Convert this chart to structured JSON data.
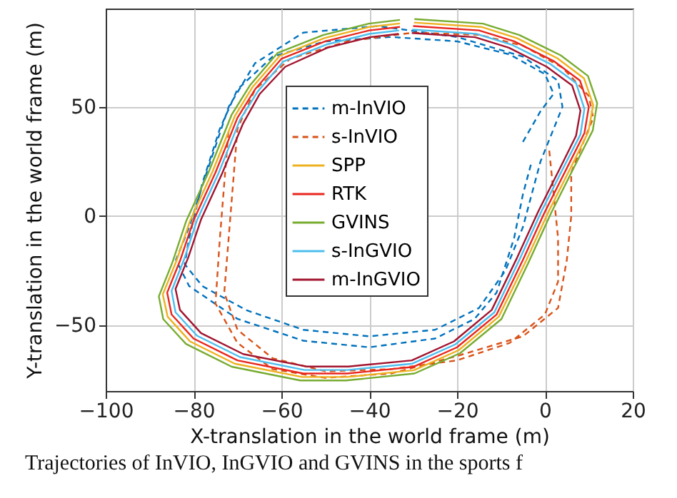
{
  "chart_data": {
    "type": "line",
    "xlabel": "X-translation in the world frame (m)",
    "ylabel": "Y-translation in the world frame (m)",
    "annotations": [
      "Trajectories of InVIO, InGVIO and GVINS in the sports f"
    ],
    "xlim": [
      -100,
      20
    ],
    "ylim": [
      -80,
      95
    ],
    "xticks": [
      -100,
      -80,
      -60,
      -40,
      -20,
      0,
      20
    ],
    "yticks": [
      -50,
      0,
      50
    ],
    "grid": true,
    "legend": "top",
    "series": [
      {
        "name": "m-InVIO",
        "color": "#0072bd",
        "line_style": "dashed",
        "x": [
          -5,
          -1,
          2,
          0,
          -8,
          -20,
          -35,
          -50,
          -62,
          -70,
          -74,
          -78,
          -81,
          -82,
          -78,
          -68,
          -55,
          -40,
          -25,
          -15,
          -9,
          -5,
          -1,
          4,
          3,
          -5,
          -20,
          -38,
          -55,
          -66,
          -72,
          -77,
          -81,
          -84,
          -81,
          -70,
          -55,
          -40,
          -25,
          -16,
          -11,
          -7,
          -5,
          -3
        ],
        "values": [
          34,
          48,
          56,
          65,
          74,
          80,
          82,
          80,
          73,
          58,
          40,
          15,
          -10,
          -22,
          -32,
          -43,
          -52,
          -55,
          -52,
          -42,
          -25,
          -5,
          25,
          50,
          62,
          73,
          82,
          87,
          84,
          70,
          50,
          20,
          -5,
          -20,
          -32,
          -47,
          -57,
          -60,
          -56,
          -47,
          -35,
          -10,
          10,
          25
        ]
      },
      {
        "name": "s-InVIO",
        "color": "#d95319",
        "line_style": "dashed",
        "x": [
          1,
          2,
          3,
          3,
          0,
          -8,
          -20,
          -35,
          -50,
          -62,
          -70,
          -73,
          -72,
          -71,
          -70,
          -66,
          -58,
          -45,
          -30,
          -15,
          -5,
          4,
          10,
          11,
          9,
          6,
          6,
          5,
          3,
          -5,
          -20,
          -35,
          -50,
          -62,
          -70,
          -75,
          -74,
          -73,
          -72
        ],
        "values": [
          30,
          10,
          -10,
          -30,
          -45,
          -58,
          -66,
          -70,
          -71,
          -65,
          -52,
          -35,
          -10,
          15,
          40,
          58,
          72,
          80,
          84,
          83,
          78,
          68,
          55,
          45,
          35,
          20,
          0,
          -20,
          -42,
          -55,
          -64,
          -72,
          -74,
          -70,
          -58,
          -40,
          -10,
          15,
          40
        ]
      },
      {
        "name": "SPP",
        "color": "#edb120",
        "line_style": "solid",
        "x": [
          -29.8,
          -14.5,
          -6.4,
          2.8,
          8.9,
          11.0,
          9.9,
          5.9,
          0.8,
          -4.3,
          -10.5,
          -19.6,
          -29.8,
          -45.1,
          -55.3,
          -70.6,
          -80.8,
          -85.9,
          -87.0,
          -83.9,
          -80.8,
          -75.7,
          -70.6,
          -66.6,
          -60.4,
          -50.2,
          -40.0,
          -33.0
        ],
        "values": [
          88.6,
          86.6,
          81.5,
          72.3,
          63.1,
          50.9,
          38.6,
          22.3,
          1.9,
          -20.5,
          -46.0,
          -61.3,
          -70.5,
          -73.6,
          -73.6,
          -67.5,
          -57.3,
          -46.0,
          -35.8,
          -20.5,
          -2.2,
          20.3,
          45.8,
          59.0,
          73.3,
          81.5,
          86.6,
          88.2
        ]
      },
      {
        "name": "RTK",
        "color": "#e8261e",
        "line_style": "solid",
        "x": [
          -30,
          -15,
          -7,
          2,
          8,
          10,
          9,
          5,
          0,
          -5,
          -11,
          -20,
          -30,
          -45,
          -55,
          -70,
          -80,
          -85,
          -86,
          -83,
          -80,
          -75,
          -70,
          -66,
          -60,
          -50,
          -40,
          -33
        ],
        "values": [
          87,
          85,
          80,
          71,
          62,
          50,
          38,
          22,
          2,
          -20,
          -45,
          -60,
          -69,
          -72,
          -72,
          -66,
          -56,
          -45,
          -35,
          -20,
          -2,
          20,
          45,
          58,
          72,
          80,
          85,
          86.6
        ]
      },
      {
        "name": "GVINS",
        "color": "#77ac30",
        "line_style": "solid",
        "x": [
          -29.7,
          -14.1,
          -5.8,
          3.6,
          9.8,
          11.9,
          10.9,
          6.7,
          1.5,
          -3.7,
          -9.9,
          -19.3,
          -29.7,
          -45.3,
          -55.7,
          -71.3,
          -81.7,
          -86.9,
          -87.9,
          -84.8,
          -81.7,
          -76.5,
          -71.3,
          -67.1,
          -60.9,
          -50.5,
          -40.1,
          -33.0
        ],
        "values": [
          90.2,
          88.1,
          82.9,
          73.6,
          64.2,
          51.7,
          39.2,
          22.6,
          1.8,
          -21.1,
          -47.1,
          -62.7,
          -72.0,
          -75.2,
          -75.2,
          -68.9,
          -58.5,
          -47.1,
          -36.7,
          -21.1,
          -2.4,
          20.5,
          46.5,
          60.0,
          74.6,
          82.9,
          88.1,
          89.8
        ]
      },
      {
        "name": "s-InGVIO",
        "color": "#4dbeee",
        "line_style": "solid",
        "x": [
          -30.2,
          -15.5,
          -7.6,
          1.2,
          7.1,
          9.0,
          8.1,
          4.1,
          -0.8,
          -5.7,
          -11.5,
          -20.4,
          -30.2,
          -44.9,
          -54.7,
          -69.4,
          -79.2,
          -84.1,
          -85.0,
          -82.1,
          -79.2,
          -74.3,
          -69.4,
          -65.4,
          -59.6,
          -49.8,
          -40.0,
          -33.2
        ],
        "values": [
          85.4,
          83.4,
          78.5,
          69.7,
          60.9,
          49.1,
          37.4,
          21.7,
          2.1,
          -19.5,
          -44.0,
          -58.7,
          -67.5,
          -70.4,
          -70.4,
          -64.5,
          -54.7,
          -44.0,
          -34.2,
          -19.5,
          -1.8,
          19.7,
          44.2,
          57.0,
          70.7,
          78.5,
          83.4,
          85.0
        ]
      },
      {
        "name": "m-InGVIO",
        "color": "#a2142f",
        "line_style": "solid",
        "x": [
          -30.3,
          -15.9,
          -8.2,
          0.4,
          6.2,
          8.1,
          7.1,
          3.3,
          -1.5,
          -6.3,
          -12.1,
          -20.7,
          -30.3,
          -44.7,
          -54.3,
          -68.7,
          -78.3,
          -83.1,
          -84.1,
          -81.2,
          -78.3,
          -73.5,
          -68.7,
          -64.9,
          -59.1,
          -49.5,
          -39.9,
          -33.3
        ],
        "values": [
          83.8,
          81.9,
          77.1,
          68.4,
          59.8,
          48.3,
          36.8,
          21.4,
          2.2,
          -18.9,
          -42.9,
          -57.3,
          -66.0,
          -68.8,
          -68.8,
          -63.1,
          -53.5,
          -42.9,
          -33.3,
          -18.9,
          -1.6,
          19.5,
          42.5,
          56.0,
          68.4,
          77.1,
          81.9,
          83.4
        ]
      }
    ]
  }
}
